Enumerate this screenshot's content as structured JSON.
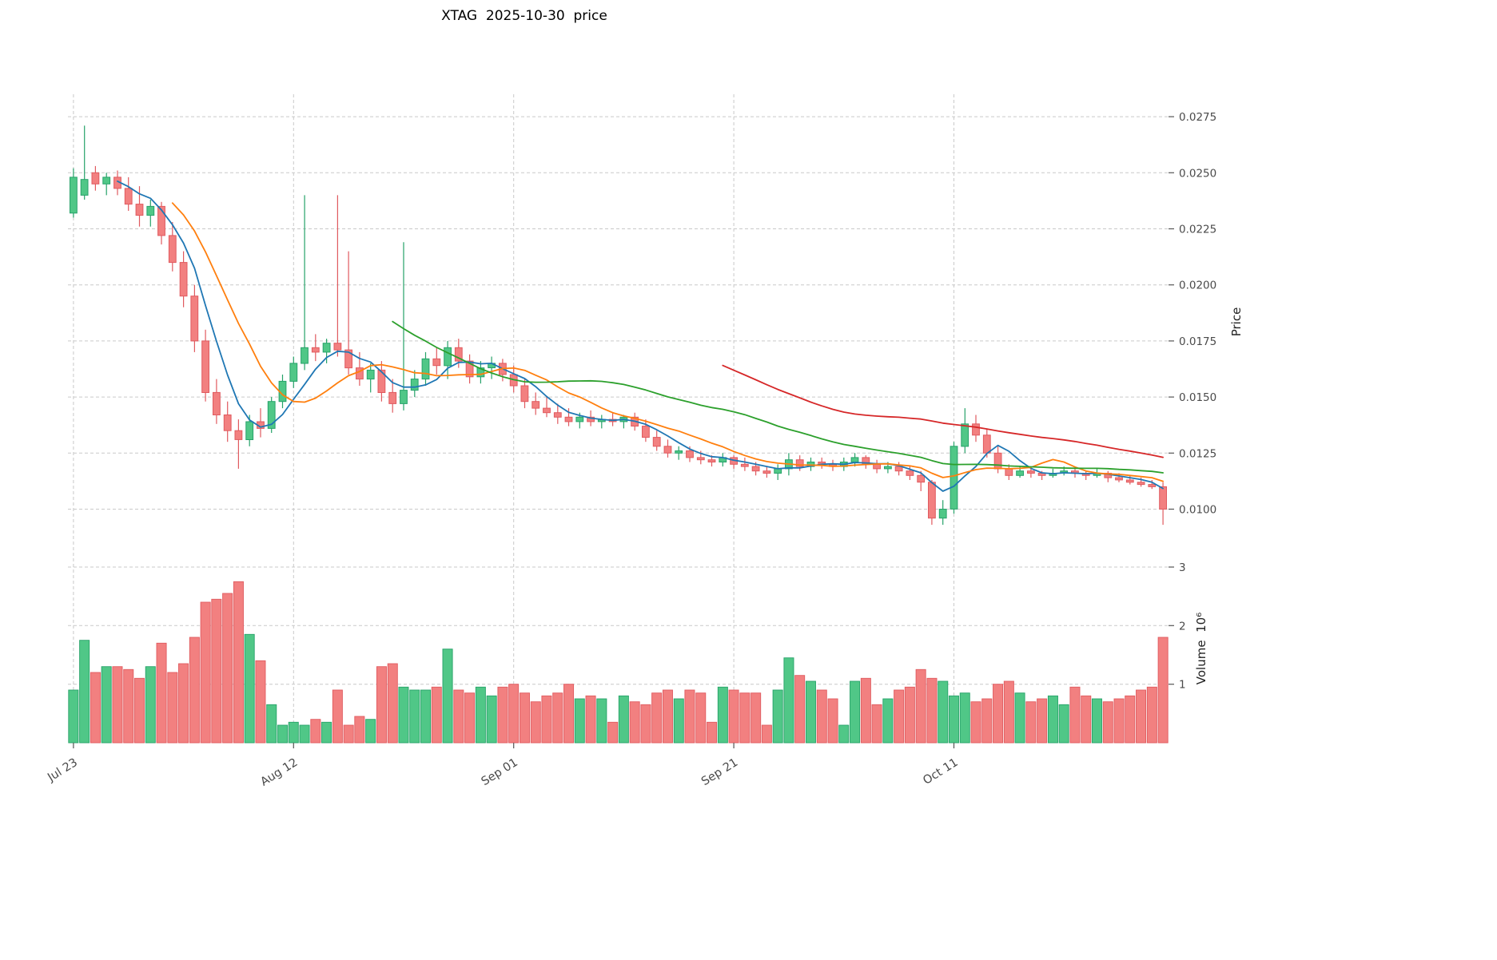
{
  "chart_data": {
    "type": "candlestick",
    "title": "XTAG  2025-10-30  price",
    "price_axis": {
      "label": "Price",
      "ticks": [
        0.01,
        0.0125,
        0.015,
        0.0175,
        0.02,
        0.0225,
        0.025,
        0.0275
      ],
      "ylim": [
        0.0082,
        0.0285
      ]
    },
    "volume_axis": {
      "label": "Volume  10⁶",
      "ticks": [
        1,
        2,
        3
      ],
      "ylim": [
        0,
        3.3
      ]
    },
    "x_axis": {
      "tick_indices": [
        0,
        20,
        40,
        60,
        80
      ],
      "tick_labels": [
        "Jul 23",
        "Aug 12",
        "Sep 01",
        "Sep 21",
        "Oct 11"
      ]
    },
    "colors": {
      "up": "#50c787",
      "up_edge": "#26a269",
      "down": "#f28080",
      "down_edge": "#e05a5f",
      "grid": "#c9c9c9",
      "tick_text": "#4a4a4a"
    },
    "moving_averages": {
      "windows": [
        5,
        10,
        30,
        60
      ],
      "colors": [
        "#1f77b4",
        "#ff7f0e",
        "#2ca02c",
        "#d62728"
      ]
    },
    "open": [
      0.0232,
      0.024,
      0.025,
      0.0245,
      0.0248,
      0.0243,
      0.0236,
      0.0231,
      0.0235,
      0.0222,
      0.021,
      0.0195,
      0.0175,
      0.0152,
      0.0142,
      0.0135,
      0.0131,
      0.0139,
      0.0136,
      0.0148,
      0.0157,
      0.0165,
      0.0172,
      0.017,
      0.0174,
      0.0171,
      0.0163,
      0.0158,
      0.0162,
      0.0152,
      0.0147,
      0.0153,
      0.0158,
      0.0167,
      0.0164,
      0.0172,
      0.0166,
      0.0159,
      0.0163,
      0.0165,
      0.016,
      0.0155,
      0.0148,
      0.0145,
      0.0143,
      0.0141,
      0.0139,
      0.0141,
      0.0139,
      0.014,
      0.0139,
      0.0141,
      0.0137,
      0.0132,
      0.0128,
      0.0125,
      0.0126,
      0.0123,
      0.0122,
      0.0121,
      0.0123,
      0.012,
      0.0119,
      0.0117,
      0.0116,
      0.0118,
      0.0122,
      0.0119,
      0.0121,
      0.012,
      0.0119,
      0.0121,
      0.0123,
      0.012,
      0.0118,
      0.0119,
      0.0117,
      0.0115,
      0.0112,
      0.0096,
      0.01,
      0.0128,
      0.0138,
      0.0133,
      0.0125,
      0.0118,
      0.0115,
      0.0117,
      0.0116,
      0.0115,
      0.0116,
      0.0117,
      0.0116,
      0.0115,
      0.0116,
      0.0114,
      0.0113,
      0.0112,
      0.0111,
      0.011
    ],
    "high": [
      0.0252,
      0.0271,
      0.0253,
      0.025,
      0.0251,
      0.0248,
      0.0244,
      0.0238,
      0.0237,
      0.0228,
      0.0215,
      0.02,
      0.018,
      0.0158,
      0.0148,
      0.014,
      0.0142,
      0.0145,
      0.015,
      0.016,
      0.0168,
      0.024,
      0.0178,
      0.0176,
      0.024,
      0.0215,
      0.017,
      0.0165,
      0.0166,
      0.0158,
      0.0219,
      0.0162,
      0.017,
      0.0172,
      0.0175,
      0.0176,
      0.0169,
      0.0166,
      0.0168,
      0.0167,
      0.0164,
      0.0158,
      0.0152,
      0.015,
      0.0147,
      0.0145,
      0.0143,
      0.0144,
      0.0142,
      0.0143,
      0.0142,
      0.0143,
      0.014,
      0.0135,
      0.0131,
      0.0128,
      0.0128,
      0.0126,
      0.0124,
      0.0125,
      0.0124,
      0.0123,
      0.0121,
      0.0119,
      0.012,
      0.0125,
      0.0124,
      0.0123,
      0.0123,
      0.0122,
      0.0123,
      0.0125,
      0.0124,
      0.0122,
      0.0121,
      0.0121,
      0.0119,
      0.0117,
      0.0113,
      0.0104,
      0.013,
      0.0145,
      0.0142,
      0.0136,
      0.0128,
      0.012,
      0.0119,
      0.0118,
      0.0117,
      0.0118,
      0.0119,
      0.0118,
      0.0117,
      0.0118,
      0.0117,
      0.0116,
      0.0115,
      0.0114,
      0.0113,
      0.0112
    ],
    "low": [
      0.023,
      0.0238,
      0.0242,
      0.024,
      0.024,
      0.0233,
      0.0226,
      0.0226,
      0.0218,
      0.0206,
      0.019,
      0.017,
      0.0148,
      0.0138,
      0.013,
      0.0118,
      0.0128,
      0.0132,
      0.0134,
      0.0145,
      0.0154,
      0.0162,
      0.0166,
      0.0165,
      0.0168,
      0.016,
      0.0155,
      0.0152,
      0.0148,
      0.0143,
      0.0144,
      0.015,
      0.0155,
      0.016,
      0.0158,
      0.0163,
      0.0156,
      0.0156,
      0.0158,
      0.0157,
      0.0152,
      0.0145,
      0.0142,
      0.0141,
      0.0138,
      0.0137,
      0.0136,
      0.0137,
      0.0136,
      0.0137,
      0.0136,
      0.0135,
      0.013,
      0.0126,
      0.0123,
      0.0122,
      0.0121,
      0.012,
      0.0119,
      0.0119,
      0.0118,
      0.0117,
      0.0115,
      0.0114,
      0.0113,
      0.0115,
      0.0117,
      0.0117,
      0.0118,
      0.0117,
      0.0117,
      0.0119,
      0.0118,
      0.0116,
      0.0116,
      0.0115,
      0.0113,
      0.0108,
      0.0093,
      0.0093,
      0.0098,
      0.0125,
      0.013,
      0.0123,
      0.0116,
      0.0113,
      0.0114,
      0.0114,
      0.0113,
      0.0114,
      0.0115,
      0.0114,
      0.0113,
      0.0114,
      0.0112,
      0.0112,
      0.0111,
      0.011,
      0.0109,
      0.0093
    ],
    "close": [
      0.0248,
      0.0247,
      0.0245,
      0.0248,
      0.0243,
      0.0236,
      0.0231,
      0.0235,
      0.0222,
      0.021,
      0.0195,
      0.0175,
      0.0152,
      0.0142,
      0.0135,
      0.0131,
      0.0139,
      0.0136,
      0.0148,
      0.0157,
      0.0165,
      0.0172,
      0.017,
      0.0174,
      0.0171,
      0.0163,
      0.0158,
      0.0162,
      0.0152,
      0.0147,
      0.0153,
      0.0158,
      0.0167,
      0.0164,
      0.0172,
      0.0166,
      0.0159,
      0.0163,
      0.0165,
      0.016,
      0.0155,
      0.0148,
      0.0145,
      0.0143,
      0.0141,
      0.0139,
      0.0141,
      0.0139,
      0.014,
      0.0139,
      0.0141,
      0.0137,
      0.0132,
      0.0128,
      0.0125,
      0.0126,
      0.0123,
      0.0122,
      0.0121,
      0.0123,
      0.012,
      0.0119,
      0.0117,
      0.0116,
      0.0118,
      0.0122,
      0.0119,
      0.0121,
      0.012,
      0.0119,
      0.0121,
      0.0123,
      0.012,
      0.0118,
      0.0119,
      0.0117,
      0.0115,
      0.0112,
      0.0096,
      0.01,
      0.0128,
      0.0138,
      0.0133,
      0.0125,
      0.0118,
      0.0115,
      0.0117,
      0.0116,
      0.0115,
      0.0116,
      0.0117,
      0.0116,
      0.0115,
      0.0116,
      0.0114,
      0.0113,
      0.0112,
      0.0111,
      0.011,
      0.01
    ],
    "volume_millions": [
      0.9,
      1.75,
      1.2,
      1.3,
      1.3,
      1.25,
      1.1,
      1.3,
      1.7,
      1.2,
      1.35,
      1.8,
      2.4,
      2.45,
      2.55,
      2.75,
      1.85,
      1.4,
      0.65,
      0.3,
      0.35,
      0.3,
      0.4,
      0.35,
      0.9,
      0.3,
      0.45,
      0.4,
      1.3,
      1.35,
      0.95,
      0.9,
      0.9,
      0.95,
      1.6,
      0.9,
      0.85,
      0.95,
      0.8,
      0.95,
      1.0,
      0.85,
      0.7,
      0.8,
      0.85,
      1.0,
      0.75,
      0.8,
      0.75,
      0.35,
      0.8,
      0.7,
      0.65,
      0.85,
      0.9,
      0.75,
      0.9,
      0.85,
      0.35,
      0.95,
      0.9,
      0.85,
      0.85,
      0.3,
      0.9,
      1.45,
      1.15,
      1.05,
      0.9,
      0.75,
      0.3,
      1.05,
      1.1,
      0.65,
      0.75,
      0.9,
      0.95,
      1.25,
      1.1,
      1.05,
      0.8,
      0.85,
      0.7,
      0.75,
      1.0,
      1.05,
      0.85,
      0.7,
      0.75,
      0.8,
      0.65,
      0.95,
      0.8,
      0.75,
      0.7,
      0.75,
      0.8,
      0.9,
      0.95,
      1.8
    ]
  }
}
